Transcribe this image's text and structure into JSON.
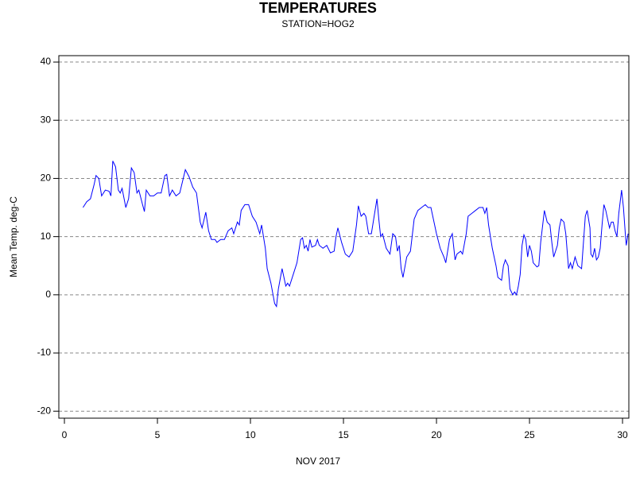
{
  "chart_data": {
    "type": "line",
    "title": "TEMPERATURES",
    "subtitle": "STATION=HOG2",
    "x_label": "NOV 2017",
    "y_label": "Mean Temp. deg-C",
    "xlim": [
      -0.3,
      30.34
    ],
    "xticks": [
      0,
      5,
      10,
      15,
      20,
      25,
      30
    ],
    "ylim": [
      -21.2,
      41.1
    ],
    "yticks": [
      -20,
      -10,
      0,
      10,
      20,
      30,
      40
    ],
    "grid": true,
    "x": [
      1.0,
      1.2,
      1.4,
      1.6,
      1.7,
      1.85,
      2.0,
      2.2,
      2.4,
      2.5,
      2.6,
      2.75,
      2.9,
      3.0,
      3.1,
      3.3,
      3.45,
      3.6,
      3.75,
      3.9,
      4.0,
      4.2,
      4.3,
      4.4,
      4.6,
      4.8,
      5.0,
      5.2,
      5.4,
      5.5,
      5.65,
      5.8,
      6.0,
      6.2,
      6.5,
      6.7,
      6.9,
      7.1,
      7.3,
      7.4,
      7.6,
      7.75,
      7.9,
      8.1,
      8.2,
      8.4,
      8.6,
      8.8,
      9.0,
      9.1,
      9.3,
      9.4,
      9.5,
      9.7,
      9.9,
      10.1,
      10.3,
      10.5,
      10.6,
      10.8,
      10.9,
      11.1,
      11.3,
      11.4,
      11.5,
      11.7,
      11.9,
      12.0,
      12.1,
      12.3,
      12.5,
      12.7,
      12.8,
      12.9,
      13.0,
      13.1,
      13.2,
      13.3,
      13.5,
      13.6,
      13.7,
      13.9,
      14.1,
      14.3,
      14.5,
      14.6,
      14.7,
      14.9,
      15.1,
      15.3,
      15.5,
      15.7,
      15.8,
      15.95,
      16.1,
      16.2,
      16.35,
      16.5,
      16.7,
      16.8,
      16.9,
      17.0,
      17.1,
      17.3,
      17.5,
      17.65,
      17.8,
      17.9,
      18.0,
      18.1,
      18.2,
      18.4,
      18.6,
      18.8,
      19.0,
      19.2,
      19.4,
      19.55,
      19.7,
      19.8,
      20.0,
      20.2,
      20.4,
      20.5,
      20.7,
      20.85,
      21.0,
      21.1,
      21.3,
      21.4,
      21.6,
      21.7,
      21.9,
      22.1,
      22.3,
      22.5,
      22.6,
      22.7,
      22.8,
      23.0,
      23.2,
      23.3,
      23.5,
      23.6,
      23.7,
      23.85,
      23.95,
      24.1,
      24.2,
      24.3,
      24.4,
      24.5,
      24.6,
      24.7,
      24.8,
      24.9,
      25.0,
      25.1,
      25.2,
      25.4,
      25.5,
      25.6,
      25.8,
      25.95,
      26.1,
      26.2,
      26.3,
      26.5,
      26.6,
      26.7,
      26.85,
      26.95,
      27.1,
      27.2,
      27.3,
      27.45,
      27.6,
      27.8,
      27.9,
      28.0,
      28.1,
      28.25,
      28.3,
      28.4,
      28.5,
      28.6,
      28.7,
      28.8,
      28.9,
      29.0,
      29.1,
      29.2,
      29.3,
      29.4,
      29.5,
      29.6,
      29.7,
      29.8,
      29.95,
      30.05,
      30.15,
      30.2,
      30.3
    ],
    "series": [
      {
        "color": "#0000ff",
        "values": [
          15,
          16,
          16.5,
          19,
          20.5,
          20,
          17,
          18,
          17.8,
          17,
          23,
          22,
          18,
          17.5,
          18.3,
          15,
          16.5,
          21.8,
          21,
          17.5,
          18,
          15.5,
          14.3,
          18,
          17,
          17,
          17.5,
          17.5,
          20.5,
          20.7,
          17,
          18,
          17,
          17.5,
          21.5,
          20.3,
          18.5,
          17.5,
          12.5,
          11.5,
          14.2,
          11,
          9.5,
          9.5,
          9,
          9.5,
          9.5,
          11,
          11.5,
          10.5,
          12.5,
          12,
          14.5,
          15.5,
          15.5,
          13.5,
          12.5,
          10.5,
          12,
          8,
          4.5,
          2,
          -1.5,
          -2,
          1,
          4.5,
          1.5,
          2,
          1.5,
          3.5,
          5.5,
          9.5,
          9.8,
          8,
          8.5,
          7.5,
          9.5,
          8.2,
          8.5,
          9.5,
          8.5,
          8,
          8.5,
          7.2,
          7.5,
          10,
          11.5,
          9,
          7,
          6.5,
          7.5,
          12,
          15.3,
          13.5,
          14,
          13.5,
          10.5,
          10.5,
          14.5,
          16.5,
          13,
          10,
          10.5,
          8,
          7,
          10.5,
          10,
          7.5,
          8.5,
          4.5,
          3,
          6.5,
          7.5,
          13,
          14.5,
          15,
          15.5,
          15,
          15,
          13.5,
          10.5,
          8,
          6.5,
          5.5,
          9.5,
          10.5,
          6,
          7,
          7.5,
          7,
          10.5,
          13.5,
          14,
          14.5,
          15,
          15,
          14,
          15,
          12,
          8,
          5,
          3,
          2.5,
          5,
          6,
          5,
          1,
          0,
          0.5,
          0,
          1.5,
          3.5,
          8.5,
          10.3,
          9.5,
          6.5,
          8.5,
          7.5,
          5.5,
          4.8,
          5,
          9,
          14.5,
          12.5,
          12,
          9,
          6.5,
          8.5,
          11.5,
          13,
          12.5,
          10.5,
          4.5,
          5.5,
          4.5,
          6.5,
          5,
          4.5,
          9,
          13.5,
          14.5,
          11.5,
          7,
          6.5,
          8,
          6,
          6.5,
          8,
          12,
          15.5,
          14.5,
          13,
          11.5,
          12.5,
          12.5,
          11,
          10,
          14,
          18,
          15,
          10.5,
          8.5,
          10.5
        ]
      }
    ]
  }
}
